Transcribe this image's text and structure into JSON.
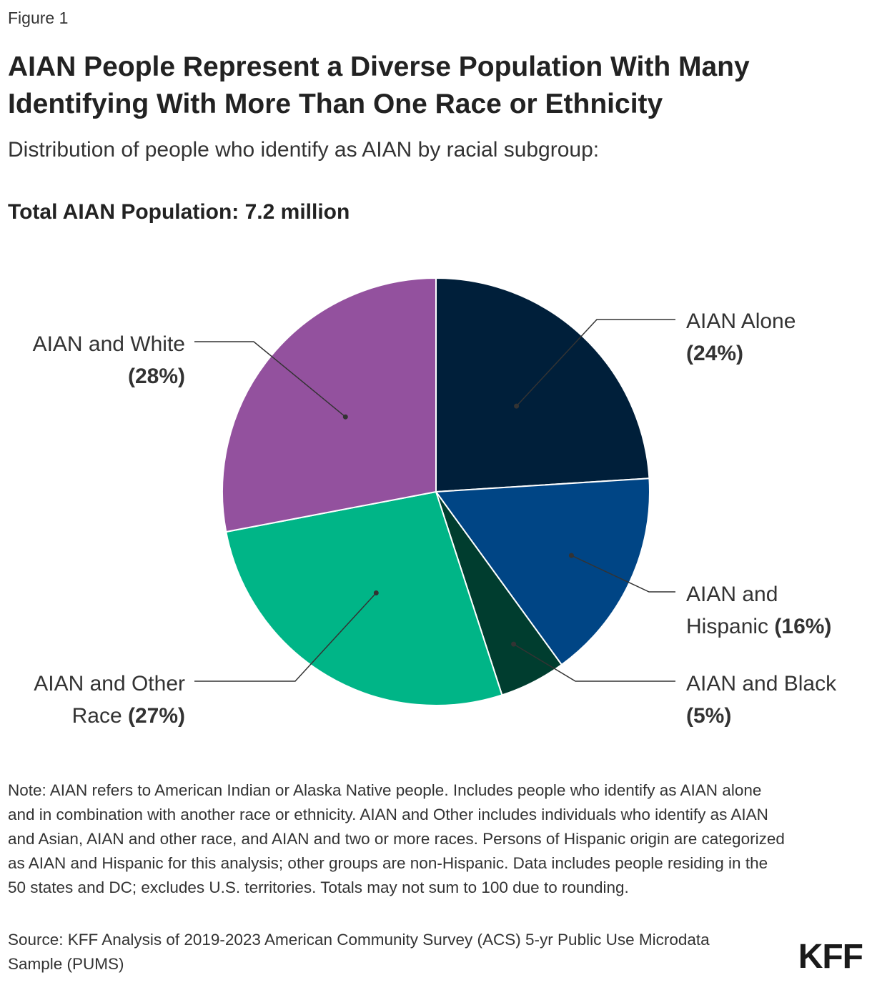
{
  "figure_label": "Figure 1",
  "chart_data": {
    "type": "pie",
    "title": "AIAN People Represent a Diverse Population With Many Identifying With More Than One Race or Ethnicity",
    "subtitle": "Distribution of people who identify as AIAN by racial subgroup:",
    "total_label": "Total AIAN Population: 7.2 million",
    "slices": [
      {
        "label_lines": [
          "AIAN Alone"
        ],
        "pct_text": "(24%)",
        "value": 24,
        "color": "#001f3a"
      },
      {
        "label_lines": [
          "AIAN and",
          "Hispanic"
        ],
        "pct_text": "(16%)",
        "value": 16,
        "color": "#004585"
      },
      {
        "label_lines": [
          "AIAN and Black"
        ],
        "pct_text": "(5%)",
        "value": 5,
        "color": "#003d2f"
      },
      {
        "label_lines": [
          "AIAN and Other",
          "Race"
        ],
        "pct_text": "(27%)",
        "value": 27,
        "color": "#00b587"
      },
      {
        "label_lines": [
          "AIAN and White"
        ],
        "pct_text": "(28%)",
        "value": 28,
        "color": "#93519e"
      }
    ]
  },
  "note": "Note: AIAN refers to American Indian or Alaska Native people. Includes people who identify as AIAN alone and in combination with another race or ethnicity. AIAN and Other includes individuals who identify as AIAN and Asian, AIAN and other race, and AIAN and two or more races. Persons of Hispanic origin are categorized as AIAN and Hispanic for this analysis; other groups are non-Hispanic. Data includes people residing in the 50 states and DC; excludes U.S. territories. Totals may not sum to 100 due to rounding.",
  "source": "Source: KFF Analysis of 2019-2023 American Community Survey (ACS) 5-yr Public Use Microdata Sample (PUMS)",
  "logo": "KFF"
}
